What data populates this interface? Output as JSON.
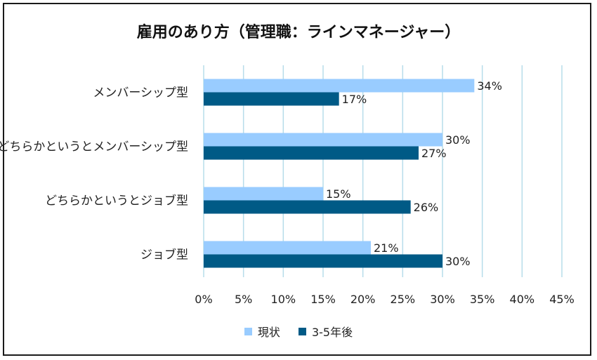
{
  "chart_data": {
    "type": "bar",
    "orientation": "horizontal",
    "title": "雇用のあり方（管理職：ラインマネージャー）",
    "categories": [
      "メンバーシップ型",
      "どちらかというとメンバーシップ型",
      "どちらかというとジョブ型",
      "ジョブ型"
    ],
    "series": [
      {
        "name": "現状",
        "values": [
          34,
          30,
          15,
          21
        ],
        "color": "#99ccff"
      },
      {
        "name": "3-5年後",
        "values": [
          17,
          27,
          26,
          30
        ],
        "color": "#005a86"
      }
    ],
    "data_label_suffix": "%",
    "xlim": [
      0,
      45
    ],
    "x_ticks": [
      "0%",
      "5%",
      "10%",
      "15%",
      "20%",
      "25%",
      "30%",
      "35%",
      "40%",
      "45%"
    ],
    "grid": "vertical",
    "grid_color": "#b7ddea",
    "legend_position": "bottom"
  }
}
